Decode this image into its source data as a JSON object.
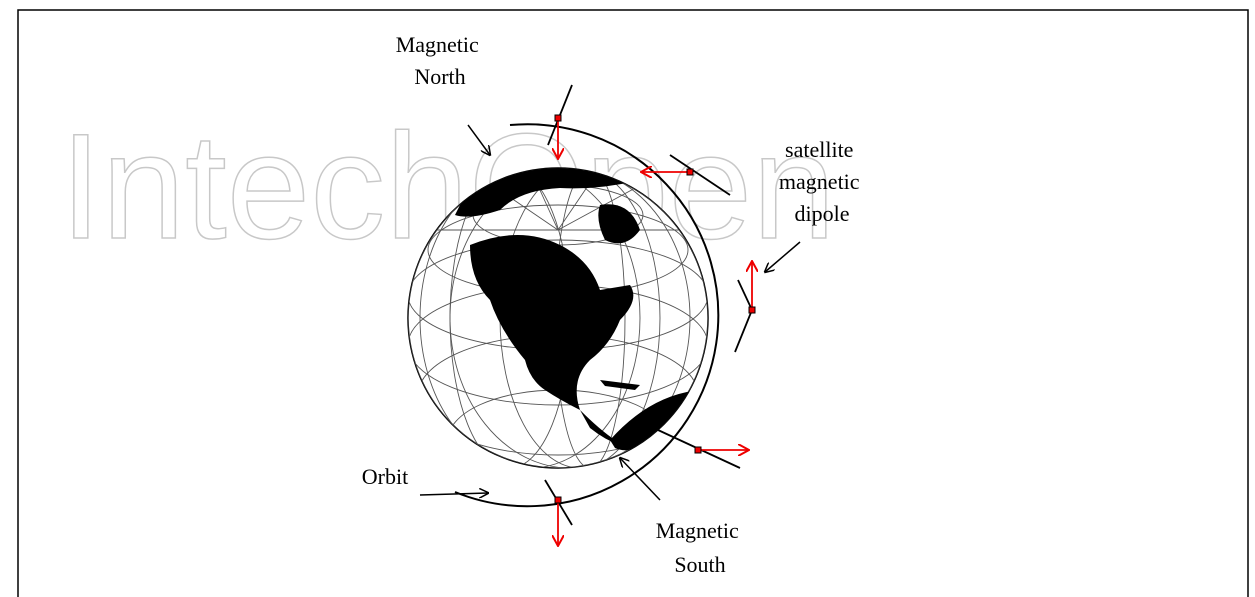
{
  "watermark": "IntechOpen",
  "labels": {
    "north": [
      "Magnetic",
      "North"
    ],
    "dipole": [
      "satellite",
      "magnetic",
      "dipole"
    ],
    "orbit": [
      "Orbit"
    ],
    "south": [
      "Magnetic",
      "South"
    ]
  }
}
